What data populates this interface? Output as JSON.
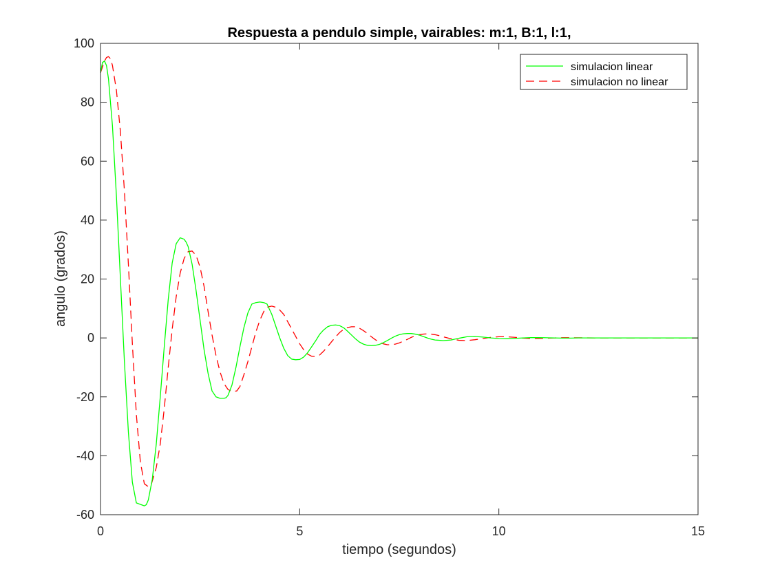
{
  "chart_data": {
    "type": "line",
    "title": "Respuesta a pendulo simple, vairables: m:1, B:1, l:1,",
    "xlabel": "tiempo (segundos)",
    "ylabel": "angulo (grados)",
    "xlim": [
      0,
      15
    ],
    "ylim": [
      -60,
      100
    ],
    "xticks": [
      0,
      5,
      10,
      15
    ],
    "yticks": [
      -60,
      -40,
      -20,
      0,
      20,
      40,
      60,
      80,
      100
    ],
    "grid": false,
    "legend_position": "top-right",
    "series": [
      {
        "name": "simulacion linear",
        "color": "#00ff00",
        "style": "solid",
        "x": [
          0,
          0.05,
          0.1,
          0.15,
          0.2,
          0.3,
          0.4,
          0.5,
          0.6,
          0.7,
          0.8,
          0.9,
          1.0,
          1.1,
          1.15,
          1.2,
          1.3,
          1.4,
          1.5,
          1.6,
          1.7,
          1.8,
          1.9,
          2.0,
          2.1,
          2.15,
          2.2,
          2.3,
          2.4,
          2.5,
          2.6,
          2.7,
          2.8,
          2.9,
          3.0,
          3.1,
          3.15,
          3.2,
          3.3,
          3.4,
          3.5,
          3.6,
          3.7,
          3.8,
          3.9,
          4.0,
          4.1,
          4.18,
          4.3,
          4.4,
          4.5,
          4.6,
          4.7,
          4.8,
          4.9,
          5.0,
          5.1,
          5.2,
          5.3,
          5.4,
          5.5,
          5.6,
          5.7,
          5.8,
          5.9,
          6.0,
          6.1,
          6.2,
          6.3,
          6.4,
          6.5,
          6.6,
          6.7,
          6.8,
          6.9,
          7.0,
          7.1,
          7.2,
          7.3,
          7.4,
          7.5,
          7.6,
          7.7,
          7.8,
          7.9,
          8.0,
          8.1,
          8.2,
          8.3,
          8.4,
          8.6,
          8.8,
          9.0,
          9.2,
          9.4,
          9.6,
          9.8,
          10.0,
          10.2,
          10.4,
          10.6,
          10.8,
          11.0,
          11.2,
          11.4,
          11.6,
          11.8,
          12.0,
          12.5,
          13.0,
          13.5,
          14.0,
          14.5,
          15.0
        ],
        "values": [
          90,
          93.5,
          94,
          92.5,
          88,
          72,
          48,
          20,
          -8,
          -32,
          -49,
          -56,
          -56.5,
          -57,
          -56.6,
          -55,
          -48,
          -36,
          -20,
          -3,
          13,
          25.5,
          32,
          34,
          33.5,
          32.5,
          31,
          25,
          16,
          6,
          -4,
          -12,
          -18,
          -20,
          -20.5,
          -20.5,
          -20.3,
          -19.5,
          -16,
          -10,
          -3,
          3.5,
          8.5,
          11.5,
          12,
          12.2,
          12,
          11.5,
          8,
          4,
          0,
          -3.5,
          -6,
          -7.2,
          -7.4,
          -7.3,
          -6.5,
          -5,
          -3,
          -1,
          1.2,
          2.7,
          3.8,
          4.3,
          4.4,
          4.2,
          3.5,
          2.3,
          1,
          -0.3,
          -1.4,
          -2.1,
          -2.5,
          -2.6,
          -2.5,
          -2.2,
          -1.6,
          -0.9,
          -0.1,
          0.6,
          1.1,
          1.4,
          1.5,
          1.5,
          1.3,
          1.0,
          0.5,
          0,
          -0.4,
          -0.7,
          -0.9,
          -0.7,
          -0.1,
          0.4,
          0.5,
          0.3,
          0,
          -0.2,
          -0.25,
          -0.15,
          0,
          0.1,
          0.12,
          0.06,
          0,
          -0.05,
          -0.05,
          0,
          0,
          0,
          0,
          0,
          0,
          0
        ]
      },
      {
        "name": "simulacion no linear",
        "color": "#ff0000",
        "style": "dashed",
        "x": [
          0,
          0.05,
          0.1,
          0.15,
          0.2,
          0.25,
          0.3,
          0.4,
          0.5,
          0.6,
          0.7,
          0.8,
          0.9,
          1.0,
          1.1,
          1.2,
          1.28,
          1.4,
          1.5,
          1.6,
          1.7,
          1.8,
          1.9,
          2.0,
          2.1,
          2.2,
          2.3,
          2.4,
          2.5,
          2.6,
          2.7,
          2.8,
          2.9,
          3.0,
          3.1,
          3.2,
          3.3,
          3.42,
          3.5,
          3.6,
          3.7,
          3.8,
          3.9,
          4.0,
          4.1,
          4.2,
          4.3,
          4.45,
          4.6,
          4.7,
          4.8,
          4.9,
          5.0,
          5.1,
          5.2,
          5.3,
          5.4,
          5.5,
          5.6,
          5.7,
          5.8,
          5.9,
          6.0,
          6.1,
          6.2,
          6.3,
          6.4,
          6.5,
          6.6,
          6.7,
          6.8,
          6.9,
          7.0,
          7.1,
          7.2,
          7.3,
          7.4,
          7.5,
          7.6,
          7.7,
          7.8,
          7.9,
          8.0,
          8.1,
          8.2,
          8.3,
          8.4,
          8.5,
          8.6,
          8.8,
          9.0,
          9.2,
          9.4,
          9.6,
          9.8,
          10.0,
          10.2,
          10.4,
          10.6,
          10.8,
          11.0,
          11.2,
          11.4,
          11.6,
          12.0,
          12.5,
          13.0,
          13.5,
          14.0,
          14.5,
          15.0
        ],
        "values": [
          90,
          92,
          94,
          95.2,
          95.5,
          94.8,
          92.5,
          84,
          70,
          50,
          25,
          -2,
          -26,
          -42,
          -49.5,
          -50.5,
          -49.5,
          -44,
          -36,
          -24,
          -10,
          3,
          14,
          22,
          27,
          29.3,
          29.5,
          28,
          24,
          17.5,
          9,
          1,
          -6,
          -11.5,
          -15.5,
          -17.5,
          -18.2,
          -18,
          -16.5,
          -12.5,
          -8,
          -3,
          2,
          6,
          9,
          10.5,
          10.8,
          10.2,
          8,
          5.5,
          3,
          0.5,
          -2,
          -4,
          -5.5,
          -6.2,
          -6.3,
          -5.8,
          -4.5,
          -3,
          -1.3,
          0.3,
          1.8,
          2.9,
          3.5,
          3.8,
          3.8,
          3.3,
          2.5,
          1.5,
          0.4,
          -0.6,
          -1.4,
          -2,
          -2.3,
          -2.3,
          -2.1,
          -1.7,
          -1.1,
          -0.5,
          0.2,
          0.7,
          1.1,
          1.3,
          1.4,
          1.3,
          1.1,
          0.8,
          0.4,
          -0.3,
          -0.8,
          -0.9,
          -0.6,
          -0.2,
          0.2,
          0.4,
          0.4,
          0.2,
          -0.05,
          -0.2,
          -0.2,
          -0.1,
          0,
          0.08,
          0.05,
          0,
          0,
          0,
          0,
          0,
          0
        ]
      }
    ]
  }
}
